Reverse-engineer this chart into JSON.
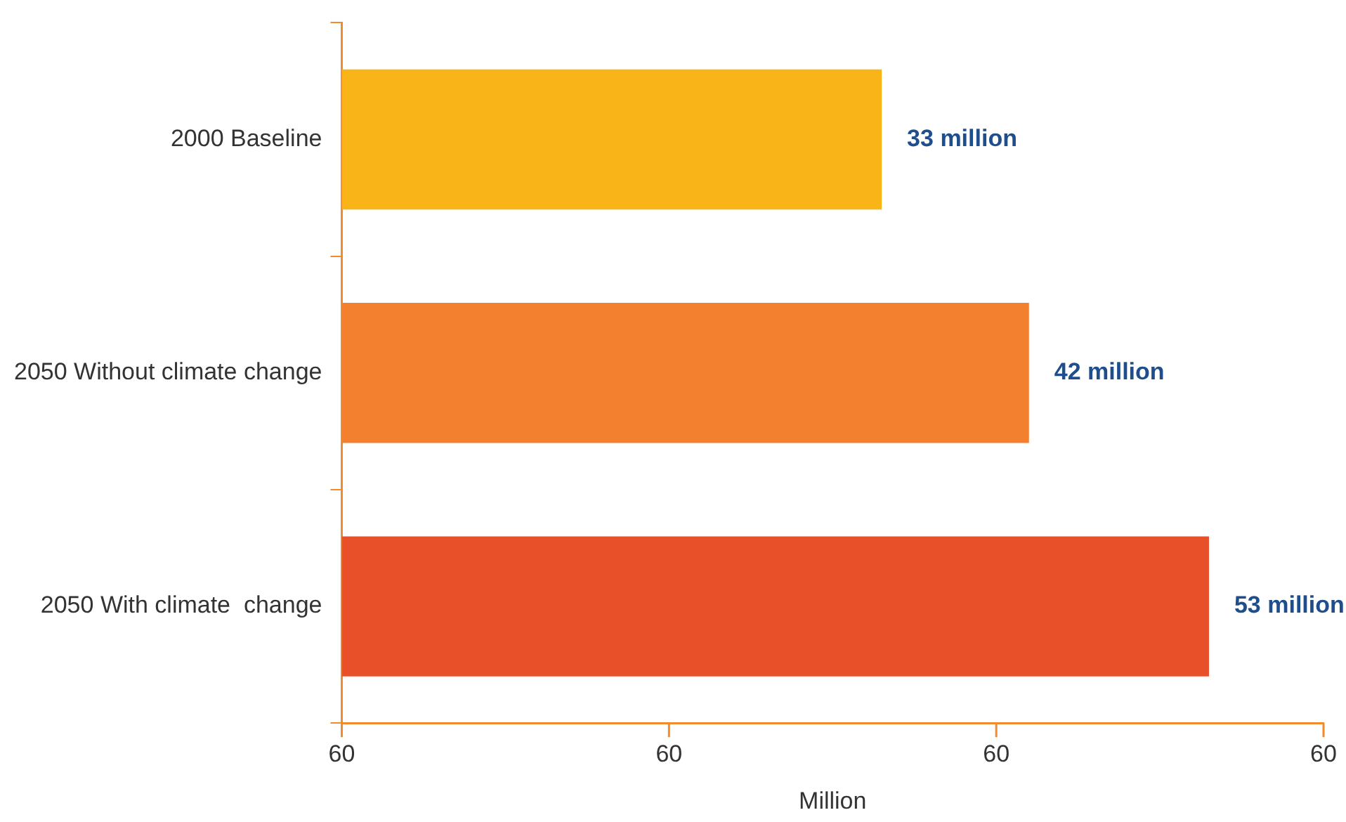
{
  "chart_data": {
    "type": "bar",
    "orientation": "horizontal",
    "xlabel": "Million",
    "categories": [
      "2000 Baseline",
      "2050 Without climate change",
      "2050 With climate  change"
    ],
    "values": [
      33,
      42,
      53
    ],
    "colors": [
      "#f9b418",
      "#f2802e",
      "#e8502a"
    ],
    "value_labels": [
      "33 million",
      "42 million",
      "53 million"
    ],
    "xlim": [
      0,
      60
    ],
    "annotations": [
      "60",
      "60",
      "60",
      "60"
    ],
    "grid": false,
    "legend": false
  }
}
